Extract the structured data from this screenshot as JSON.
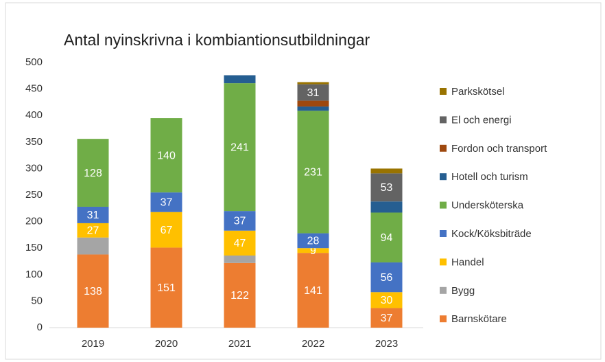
{
  "chart_data": {
    "type": "stacked_bar",
    "title": "Antal nyinskrivna i kombiantionsutbildningar",
    "categories": [
      "2019",
      "2020",
      "2021",
      "2022",
      "2023"
    ],
    "series": [
      {
        "name": "Barnskötare",
        "color": "#ed7d31",
        "values": [
          138,
          151,
          122,
          141,
          37
        ],
        "data_labels": true
      },
      {
        "name": "Bygg",
        "color": "#a5a5a5",
        "values": [
          32,
          0,
          14,
          0,
          0
        ],
        "data_labels": false
      },
      {
        "name": "Handel",
        "color": "#ffc000",
        "values": [
          27,
          67,
          47,
          9,
          30
        ],
        "data_labels": true
      },
      {
        "name": "Kock/Köksbiträde",
        "color": "#4472c4",
        "values": [
          31,
          37,
          37,
          28,
          56
        ],
        "data_labels": true
      },
      {
        "name": "Undersköterska",
        "color": "#70ad47",
        "values": [
          128,
          140,
          241,
          231,
          94
        ],
        "data_labels": true
      },
      {
        "name": "Hotell och turism",
        "color": "#255e91",
        "values": [
          0,
          0,
          15,
          8,
          21
        ],
        "data_labels": false
      },
      {
        "name": "Fordon och transport",
        "color": "#9e480e",
        "values": [
          0,
          0,
          0,
          11,
          0
        ],
        "data_labels": false
      },
      {
        "name": "El och energi",
        "color": "#636363",
        "values": [
          0,
          0,
          0,
          31,
          53
        ],
        "data_labels": true
      },
      {
        "name": "Parkskötsel",
        "color": "#997300",
        "values": [
          0,
          0,
          0,
          4,
          9
        ],
        "data_labels": false
      }
    ],
    "ylim": [
      0,
      500
    ],
    "yticks": [
      0,
      50,
      100,
      150,
      200,
      250,
      300,
      350,
      400,
      450,
      500
    ],
    "grid": false,
    "legend": "right"
  }
}
